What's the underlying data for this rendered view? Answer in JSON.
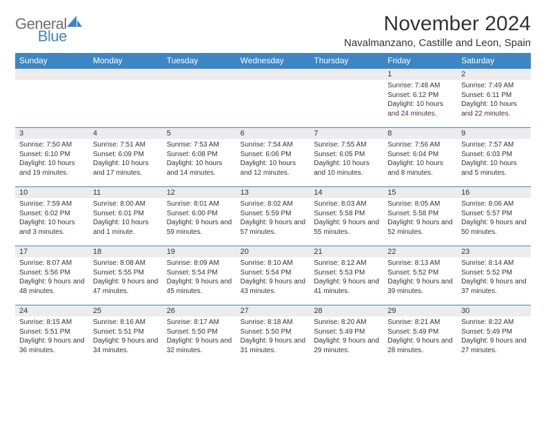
{
  "logo": {
    "text1": "General",
    "text2": "Blue"
  },
  "title": "November 2024",
  "location": "Navalmanzano, Castille and Leon, Spain",
  "colors": {
    "header_bg": "#3d86c6",
    "header_fg": "#ffffff",
    "daynum_bg": "#ececec",
    "border": "#3d86c6",
    "text": "#333333",
    "logo_gray": "#6e6e6e",
    "logo_blue": "#3d86c6"
  },
  "weekdays": [
    "Sunday",
    "Monday",
    "Tuesday",
    "Wednesday",
    "Thursday",
    "Friday",
    "Saturday"
  ],
  "weeks": [
    [
      {
        "n": "",
        "t": ""
      },
      {
        "n": "",
        "t": ""
      },
      {
        "n": "",
        "t": ""
      },
      {
        "n": "",
        "t": ""
      },
      {
        "n": "",
        "t": ""
      },
      {
        "n": "1",
        "t": "Sunrise: 7:48 AM\nSunset: 6:12 PM\nDaylight: 10 hours and 24 minutes."
      },
      {
        "n": "2",
        "t": "Sunrise: 7:49 AM\nSunset: 6:11 PM\nDaylight: 10 hours and 22 minutes."
      }
    ],
    [
      {
        "n": "3",
        "t": "Sunrise: 7:50 AM\nSunset: 6:10 PM\nDaylight: 10 hours and 19 minutes."
      },
      {
        "n": "4",
        "t": "Sunrise: 7:51 AM\nSunset: 6:09 PM\nDaylight: 10 hours and 17 minutes."
      },
      {
        "n": "5",
        "t": "Sunrise: 7:53 AM\nSunset: 6:08 PM\nDaylight: 10 hours and 14 minutes."
      },
      {
        "n": "6",
        "t": "Sunrise: 7:54 AM\nSunset: 6:06 PM\nDaylight: 10 hours and 12 minutes."
      },
      {
        "n": "7",
        "t": "Sunrise: 7:55 AM\nSunset: 6:05 PM\nDaylight: 10 hours and 10 minutes."
      },
      {
        "n": "8",
        "t": "Sunrise: 7:56 AM\nSunset: 6:04 PM\nDaylight: 10 hours and 8 minutes."
      },
      {
        "n": "9",
        "t": "Sunrise: 7:57 AM\nSunset: 6:03 PM\nDaylight: 10 hours and 5 minutes."
      }
    ],
    [
      {
        "n": "10",
        "t": "Sunrise: 7:59 AM\nSunset: 6:02 PM\nDaylight: 10 hours and 3 minutes."
      },
      {
        "n": "11",
        "t": "Sunrise: 8:00 AM\nSunset: 6:01 PM\nDaylight: 10 hours and 1 minute."
      },
      {
        "n": "12",
        "t": "Sunrise: 8:01 AM\nSunset: 6:00 PM\nDaylight: 9 hours and 59 minutes."
      },
      {
        "n": "13",
        "t": "Sunrise: 8:02 AM\nSunset: 5:59 PM\nDaylight: 9 hours and 57 minutes."
      },
      {
        "n": "14",
        "t": "Sunrise: 8:03 AM\nSunset: 5:58 PM\nDaylight: 9 hours and 55 minutes."
      },
      {
        "n": "15",
        "t": "Sunrise: 8:05 AM\nSunset: 5:58 PM\nDaylight: 9 hours and 52 minutes."
      },
      {
        "n": "16",
        "t": "Sunrise: 8:06 AM\nSunset: 5:57 PM\nDaylight: 9 hours and 50 minutes."
      }
    ],
    [
      {
        "n": "17",
        "t": "Sunrise: 8:07 AM\nSunset: 5:56 PM\nDaylight: 9 hours and 48 minutes."
      },
      {
        "n": "18",
        "t": "Sunrise: 8:08 AM\nSunset: 5:55 PM\nDaylight: 9 hours and 47 minutes."
      },
      {
        "n": "19",
        "t": "Sunrise: 8:09 AM\nSunset: 5:54 PM\nDaylight: 9 hours and 45 minutes."
      },
      {
        "n": "20",
        "t": "Sunrise: 8:10 AM\nSunset: 5:54 PM\nDaylight: 9 hours and 43 minutes."
      },
      {
        "n": "21",
        "t": "Sunrise: 8:12 AM\nSunset: 5:53 PM\nDaylight: 9 hours and 41 minutes."
      },
      {
        "n": "22",
        "t": "Sunrise: 8:13 AM\nSunset: 5:52 PM\nDaylight: 9 hours and 39 minutes."
      },
      {
        "n": "23",
        "t": "Sunrise: 8:14 AM\nSunset: 5:52 PM\nDaylight: 9 hours and 37 minutes."
      }
    ],
    [
      {
        "n": "24",
        "t": "Sunrise: 8:15 AM\nSunset: 5:51 PM\nDaylight: 9 hours and 36 minutes."
      },
      {
        "n": "25",
        "t": "Sunrise: 8:16 AM\nSunset: 5:51 PM\nDaylight: 9 hours and 34 minutes."
      },
      {
        "n": "26",
        "t": "Sunrise: 8:17 AM\nSunset: 5:50 PM\nDaylight: 9 hours and 32 minutes."
      },
      {
        "n": "27",
        "t": "Sunrise: 8:18 AM\nSunset: 5:50 PM\nDaylight: 9 hours and 31 minutes."
      },
      {
        "n": "28",
        "t": "Sunrise: 8:20 AM\nSunset: 5:49 PM\nDaylight: 9 hours and 29 minutes."
      },
      {
        "n": "29",
        "t": "Sunrise: 8:21 AM\nSunset: 5:49 PM\nDaylight: 9 hours and 28 minutes."
      },
      {
        "n": "30",
        "t": "Sunrise: 8:22 AM\nSunset: 5:49 PM\nDaylight: 9 hours and 27 minutes."
      }
    ]
  ]
}
